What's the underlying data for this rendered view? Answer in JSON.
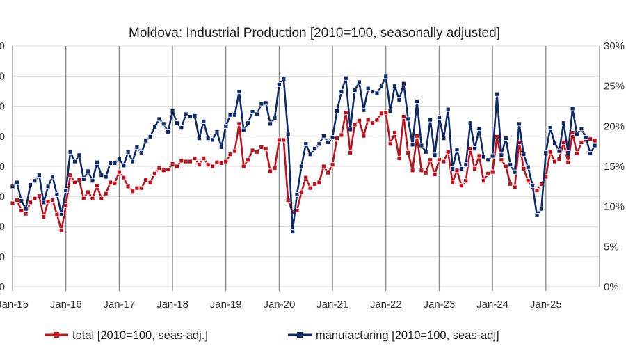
{
  "chart_data": {
    "type": "line",
    "title": "Moldova: Industrial Production [2010=100, seasonally adjusted]",
    "x_start": "Jan-15",
    "x_end": "Dec-25",
    "x_tick_labels": [
      "Jan-15",
      "Jan-16",
      "Jan-17",
      "Jan-18",
      "Jan-19",
      "Jan-20",
      "Jan-21",
      "Jan-22",
      "Jan-23",
      "Jan-24",
      "Jan-25"
    ],
    "right_axis": {
      "ylim": [
        0,
        30
      ],
      "tick_labels": [
        "0%",
        "5%",
        "10%",
        "15%",
        "20%",
        "25%",
        "30%"
      ]
    },
    "left_axis_tick_labels_visible": [
      "0",
      "0",
      "0",
      "0",
      "0",
      "0",
      "0",
      "0",
      "0"
    ],
    "grid": "horizontal major + vertical at each January",
    "legend": "bottom",
    "series": [
      {
        "name": "total [2010=100, seas-adj.]",
        "color": "#c0121c",
        "values": [
          10.4,
          10.8,
          9.5,
          9.1,
          10.5,
          11.0,
          11.3,
          8.7,
          10.6,
          10.8,
          9.0,
          7.0,
          10.1,
          13.9,
          13.0,
          13.3,
          11.0,
          11.8,
          11.0,
          12.6,
          11.0,
          11.6,
          13.0,
          12.9,
          14.3,
          13.6,
          12.5,
          11.9,
          12.3,
          12.3,
          13.3,
          13.0,
          14.1,
          14.8,
          14.5,
          14.6,
          15.3,
          15.0,
          15.7,
          15.6,
          15.6,
          16.0,
          15.2,
          16.0,
          15.2,
          15.0,
          15.5,
          15.4,
          15.6,
          16.5,
          16.9,
          20.3,
          15.0,
          15.8,
          17.0,
          16.8,
          17.4,
          17.2,
          14.4,
          14.8,
          18.3,
          18.3,
          10.8,
          9.3,
          9.5,
          11.8,
          13.6,
          12.3,
          12.8,
          13.0,
          15.0,
          14.2,
          15.2,
          18.5,
          18.9,
          21.7,
          16.7,
          20.2,
          20.7,
          18.8,
          20.8,
          20.4,
          20.8,
          21.6,
          21.7,
          17.8,
          19.2,
          16.0,
          21.2,
          16.7,
          14.5,
          18.8,
          14.5,
          14.2,
          15.8,
          14.0,
          15.8,
          15.6,
          16.8,
          13.0,
          14.5,
          12.6,
          13.2,
          17.2,
          14.7,
          16.3,
          13.2,
          14.1,
          14.3,
          18.7,
          15.8,
          15.0,
          12.8,
          12.4,
          18.0,
          14.7,
          13.2,
          12.4,
          12.0,
          12.8,
          13.7,
          16.8,
          15.6,
          15.9,
          18.0,
          15.5,
          19.2,
          16.6,
          18.0,
          18.3,
          18.4,
          18.2
        ]
      },
      {
        "name": "manufacturing [2010=100, seas-adj]",
        "color": "#0d2a6b",
        "values": [
          12.5,
          13.0,
          10.7,
          9.7,
          12.7,
          13.2,
          13.9,
          10.5,
          12.5,
          13.7,
          11.5,
          9.0,
          12.0,
          16.8,
          15.6,
          16.4,
          13.4,
          14.4,
          13.2,
          15.5,
          13.9,
          13.7,
          15.4,
          15.4,
          15.9,
          15.1,
          16.8,
          15.6,
          17.4,
          16.7,
          18.2,
          18.7,
          19.9,
          20.9,
          20.3,
          19.3,
          21.9,
          20.4,
          19.8,
          21.5,
          21.2,
          21.3,
          18.5,
          20.6,
          18.5,
          18.3,
          19.3,
          17.4,
          20.0,
          21.4,
          21.4,
          24.3,
          19.5,
          20.4,
          21.8,
          21.5,
          22.8,
          22.9,
          20.3,
          21.0,
          25.2,
          25.9,
          19.0,
          6.9,
          11.5,
          15.0,
          17.8,
          16.5,
          17.2,
          17.8,
          18.8,
          18.0,
          18.6,
          21.9,
          24.3,
          26.0,
          19.6,
          24.5,
          25.5,
          22.0,
          24.7,
          24.3,
          24.1,
          25.0,
          26.2,
          21.9,
          25.0,
          23.3,
          25.3,
          20.9,
          17.7,
          23.1,
          17.6,
          16.8,
          20.8,
          16.4,
          21.1,
          18.5,
          22.1,
          14.7,
          17.1,
          14.7,
          15.2,
          20.4,
          17.2,
          19.7,
          16.2,
          15.8,
          16.3,
          24.0,
          16.4,
          18.5,
          15.2,
          14.3,
          20.3,
          16.5,
          14.9,
          12.6,
          8.9,
          9.7,
          16.7,
          19.8,
          17.9,
          16.9,
          20.4,
          16.7,
          22.2,
          19.0,
          19.7,
          18.6,
          16.6,
          17.6
        ]
      }
    ]
  }
}
